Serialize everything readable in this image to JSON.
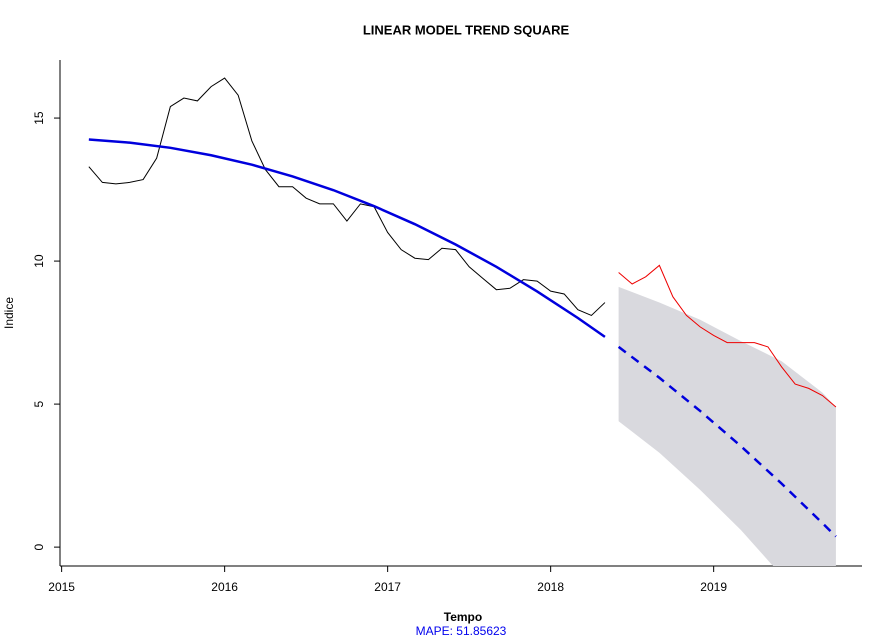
{
  "chart_data": {
    "type": "line",
    "title": "LINEAR MODEL TREND SQUARE",
    "x_label": "Tempo",
    "y_label": "Indice",
    "note": "MAPE:  51.85623",
    "note_color": "#0000ee",
    "xlim": [
      2014.99,
      2019.91
    ],
    "ylim": [
      -0.66,
      17.03
    ],
    "xticks": [
      2015,
      2016,
      2017,
      2018,
      2019
    ],
    "yticks": [
      0,
      5,
      10,
      15
    ],
    "band": {
      "color": "#d9d9de",
      "x": [
        2018.417,
        2018.667,
        2018.917,
        2019.167,
        2019.417,
        2019.667,
        2019.75
      ],
      "upper": [
        9.1,
        8.55,
        7.95,
        7.2,
        6.5,
        5.4,
        4.9
      ],
      "lower": [
        4.4,
        3.3,
        2.0,
        0.6,
        -1.0,
        -2.8,
        -3.4
      ]
    },
    "series": [
      {
        "color": "#000000",
        "width": 1,
        "dashed": false,
        "x": [
          2015.167,
          2015.25,
          2015.333,
          2015.417,
          2015.5,
          2015.583,
          2015.667,
          2015.75,
          2015.833,
          2015.917,
          2016.0,
          2016.083,
          2016.167,
          2016.25,
          2016.333,
          2016.417,
          2016.5,
          2016.583,
          2016.667,
          2016.75,
          2016.833,
          2016.917,
          2017.0,
          2017.083,
          2017.167,
          2017.25,
          2017.333,
          2017.417,
          2017.5,
          2017.583,
          2017.667,
          2017.75,
          2017.833,
          2017.917,
          2018.0,
          2018.083,
          2018.167,
          2018.25,
          2018.333
        ],
        "values": [
          13.3,
          12.75,
          12.7,
          12.75,
          12.85,
          13.6,
          15.4,
          15.7,
          15.6,
          16.1,
          16.4,
          15.8,
          14.2,
          13.2,
          12.6,
          12.6,
          12.2,
          12.0,
          12.0,
          11.4,
          12.0,
          11.9,
          11.0,
          10.4,
          10.1,
          10.05,
          10.45,
          10.4,
          9.8,
          9.4,
          9.0,
          9.05,
          9.35,
          9.3,
          8.95,
          8.85,
          8.3,
          8.1,
          8.55
        ]
      },
      {
        "color": "#0000dd",
        "width": 2.5,
        "dashed": false,
        "x": [
          2015.167,
          2015.417,
          2015.667,
          2015.917,
          2016.167,
          2016.417,
          2016.667,
          2016.917,
          2017.167,
          2017.417,
          2017.667,
          2017.917,
          2018.167,
          2018.333
        ],
        "values": [
          14.25,
          14.14,
          13.96,
          13.7,
          13.37,
          12.96,
          12.48,
          11.92,
          11.29,
          10.58,
          9.8,
          8.94,
          8.01,
          7.35
        ]
      },
      {
        "color": "#0000dd",
        "width": 2.5,
        "dashed": true,
        "x": [
          2018.417,
          2018.667,
          2018.917,
          2019.167,
          2019.417,
          2019.667,
          2019.75
        ],
        "values": [
          7.0,
          5.92,
          4.76,
          3.53,
          2.22,
          0.84,
          0.37
        ]
      },
      {
        "color": "#ee0000",
        "width": 1,
        "dashed": false,
        "x": [
          2018.417,
          2018.5,
          2018.583,
          2018.667,
          2018.75,
          2018.833,
          2018.917,
          2019.0,
          2019.083,
          2019.167,
          2019.25,
          2019.333,
          2019.417,
          2019.5,
          2019.583,
          2019.667,
          2019.75
        ],
        "values": [
          9.6,
          9.2,
          9.45,
          9.85,
          8.75,
          8.1,
          7.7,
          7.4,
          7.15,
          7.15,
          7.15,
          7.0,
          6.3,
          5.7,
          5.55,
          5.3,
          4.9
        ]
      }
    ]
  }
}
